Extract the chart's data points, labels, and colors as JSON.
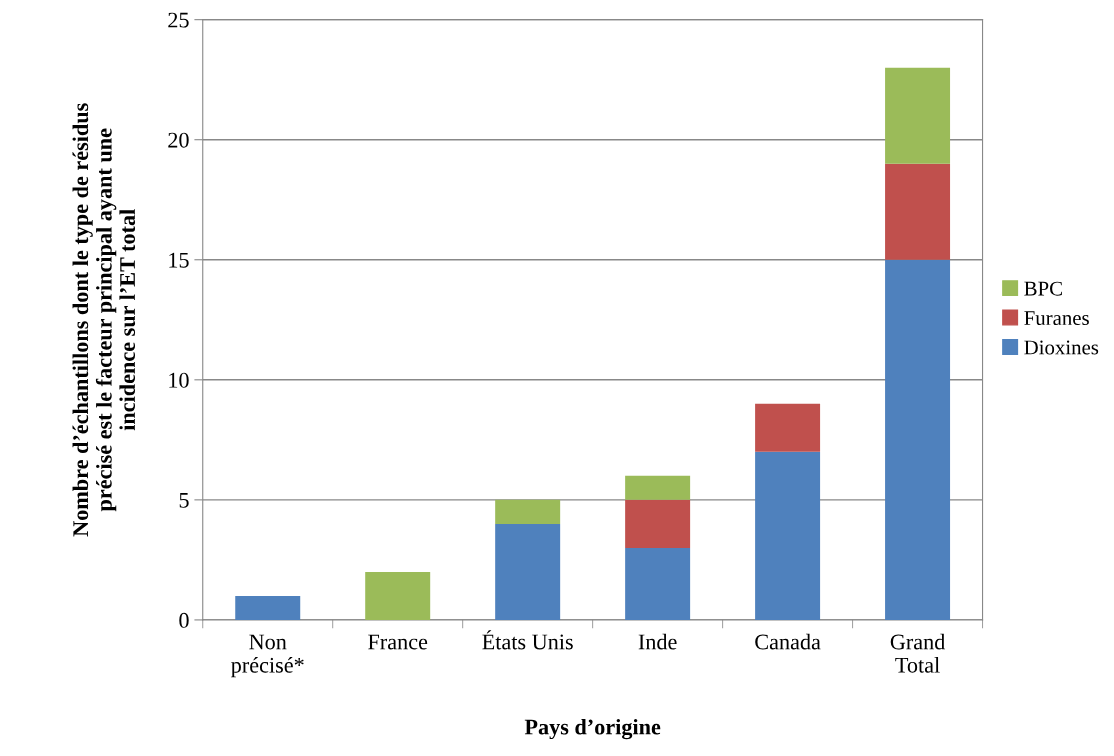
{
  "chart_data": {
    "type": "bar",
    "stacked": true,
    "xlabel": "Pays d’origine",
    "ylabel": "Nombre d’échantillons dont le type de résidus\nprécisé est le facteur principal ayant une\nincidence sur l’ET total",
    "categories": [
      "Non\nprécisé*",
      "France",
      "États Unis",
      "Inde",
      "Canada",
      "Grand\nTotal"
    ],
    "series": [
      {
        "name": "Dioxines",
        "color": "#4f81bd",
        "values": [
          1,
          0,
          4,
          3,
          7,
          15
        ]
      },
      {
        "name": "Furanes",
        "color": "#c0504d",
        "values": [
          0,
          0,
          0,
          2,
          2,
          4
        ]
      },
      {
        "name": "BPC",
        "color": "#9bbb59",
        "values": [
          0,
          2,
          1,
          1,
          0,
          4
        ]
      }
    ],
    "ylim": [
      0,
      25
    ],
    "yticks": [
      0,
      5,
      10,
      15,
      20,
      25
    ],
    "grid": "y",
    "legend": "right"
  }
}
